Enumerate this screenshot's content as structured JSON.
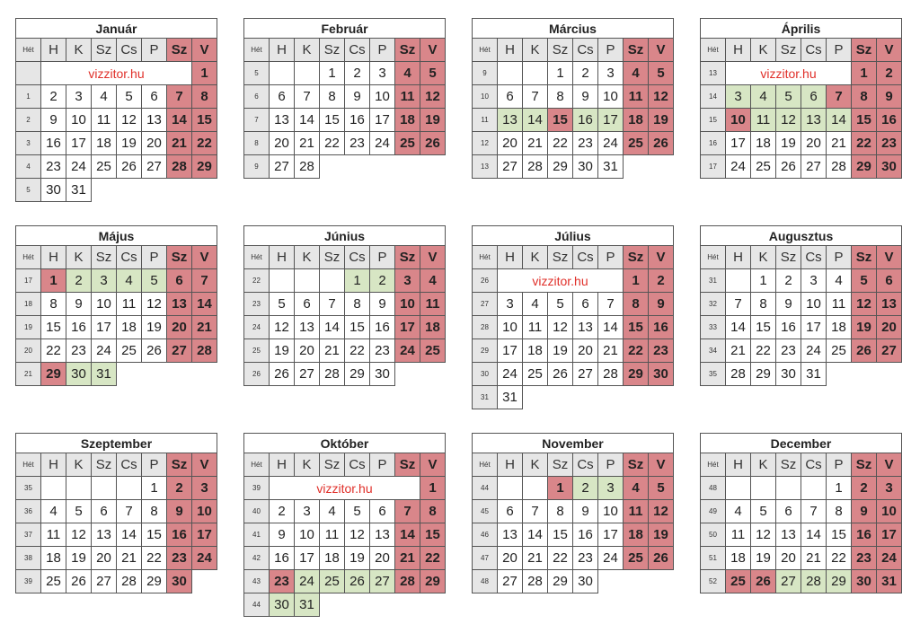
{
  "week_label": "Hét",
  "weekdays": [
    "H",
    "K",
    "Sz",
    "Cs",
    "P",
    "Sz",
    "V"
  ],
  "watermark": "vizzitor.hu",
  "colors": {
    "weekend": "#d9868a",
    "school_break": "#d7e6c4",
    "header": "#e6e6e6",
    "watermark": "#e0302a"
  },
  "months": [
    {
      "name": "Január",
      "weeks": [
        "",
        "1",
        "2",
        "3",
        "4",
        "5"
      ],
      "offset": 6,
      "days": 31,
      "holidays": [],
      "green": [],
      "watermark": true
    },
    {
      "name": "Február",
      "weeks": [
        "5",
        "6",
        "7",
        "8",
        "9"
      ],
      "offset": 2,
      "days": 28,
      "holidays": [],
      "green": [],
      "watermark": false
    },
    {
      "name": "Március",
      "weeks": [
        "9",
        "10",
        "11",
        "12",
        "13"
      ],
      "offset": 2,
      "days": 31,
      "holidays": [
        15
      ],
      "green": [
        13,
        14,
        16,
        17
      ],
      "watermark": false
    },
    {
      "name": "Április",
      "weeks": [
        "13",
        "14",
        "15",
        "16",
        "17"
      ],
      "offset": 5,
      "days": 30,
      "holidays": [
        7,
        10
      ],
      "green": [
        3,
        4,
        5,
        6,
        11,
        12,
        13,
        14
      ],
      "watermark": true
    },
    {
      "name": "Május",
      "weeks": [
        "17",
        "18",
        "19",
        "20",
        "21"
      ],
      "offset": 0,
      "days": 31,
      "holidays": [
        1,
        29
      ],
      "green": [
        2,
        3,
        4,
        5,
        30,
        31
      ],
      "watermark": false
    },
    {
      "name": "Június",
      "weeks": [
        "22",
        "23",
        "24",
        "25",
        "26"
      ],
      "offset": 3,
      "days": 30,
      "holidays": [],
      "green": [
        1,
        2
      ],
      "watermark": false
    },
    {
      "name": "Július",
      "weeks": [
        "26",
        "27",
        "28",
        "29",
        "30",
        "31"
      ],
      "offset": 5,
      "days": 31,
      "holidays": [],
      "green": [],
      "watermark": true
    },
    {
      "name": "Augusztus",
      "weeks": [
        "31",
        "32",
        "33",
        "34",
        "35"
      ],
      "offset": 1,
      "days": 31,
      "holidays": [],
      "green": [],
      "watermark": false
    },
    {
      "name": "Szeptember",
      "weeks": [
        "35",
        "36",
        "37",
        "38",
        "39"
      ],
      "offset": 4,
      "days": 30,
      "holidays": [],
      "green": [],
      "watermark": false
    },
    {
      "name": "Október",
      "weeks": [
        "39",
        "40",
        "41",
        "42",
        "43",
        "44"
      ],
      "offset": 6,
      "days": 31,
      "holidays": [
        23
      ],
      "green": [
        24,
        25,
        26,
        27,
        30,
        31
      ],
      "watermark": true
    },
    {
      "name": "November",
      "weeks": [
        "44",
        "45",
        "46",
        "47",
        "48"
      ],
      "offset": 2,
      "days": 30,
      "holidays": [
        1
      ],
      "green": [
        2,
        3
      ],
      "watermark": false
    },
    {
      "name": "December",
      "weeks": [
        "48",
        "49",
        "50",
        "51",
        "52"
      ],
      "offset": 4,
      "days": 31,
      "holidays": [
        25,
        26
      ],
      "green": [
        27,
        28,
        29
      ],
      "watermark": false
    }
  ]
}
